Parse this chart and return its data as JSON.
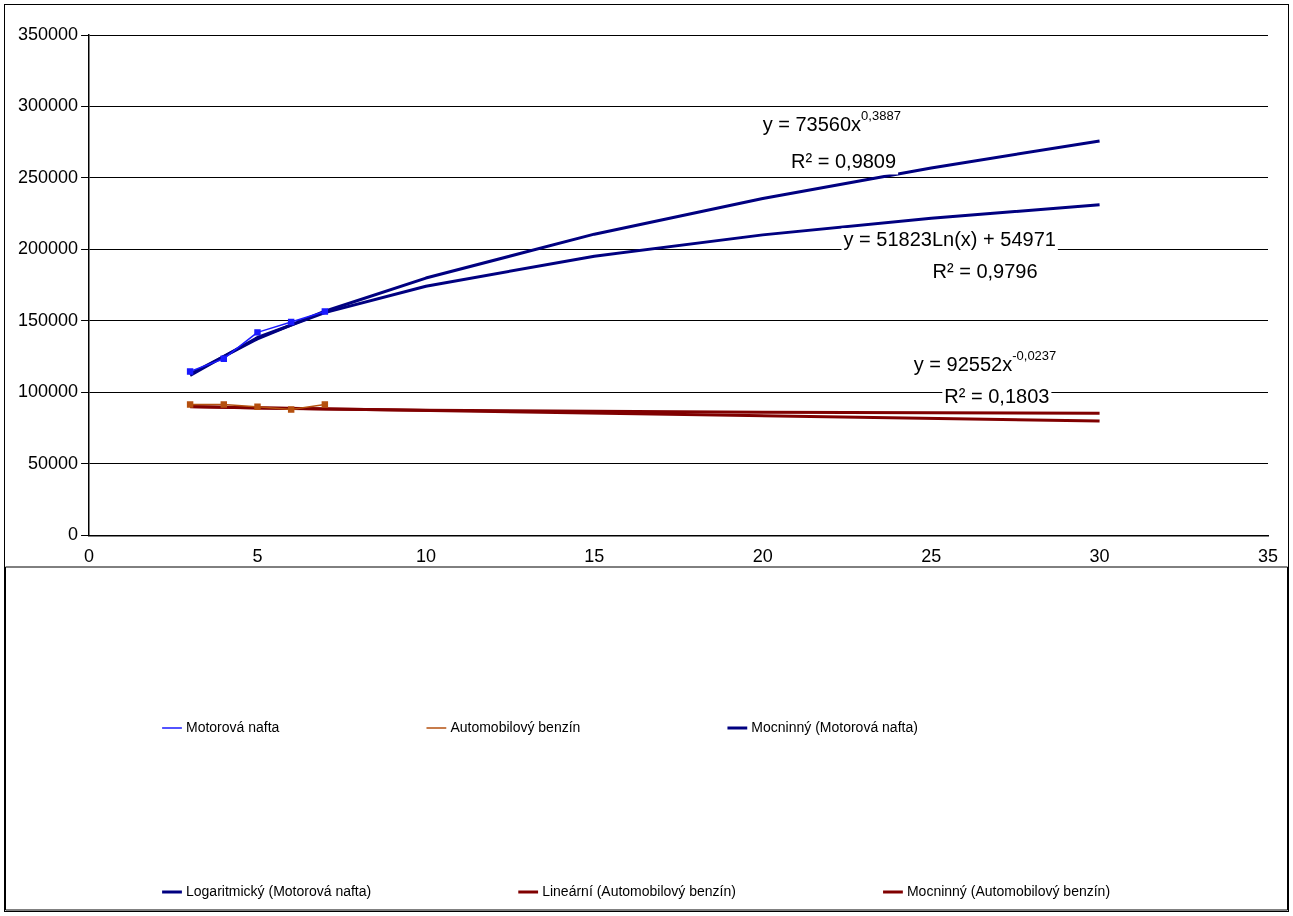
{
  "chart_data": {
    "type": "line",
    "xlim": [
      0,
      35
    ],
    "xticks": [
      0,
      5,
      10,
      15,
      20,
      25,
      30,
      35
    ],
    "ylim": [
      0,
      350000
    ],
    "yticks": [
      0,
      50000,
      100000,
      150000,
      200000,
      250000,
      300000,
      350000
    ],
    "grid": "y",
    "legend": "bottom",
    "series": [
      {
        "name": "Motorová nafta",
        "color": "#1a1aff",
        "marker": "square",
        "x": [
          3,
          4,
          5,
          6,
          7
        ],
        "values": [
          114700,
          123600,
          142000,
          149300,
          156600
        ]
      },
      {
        "name": "Automobilový benzín",
        "color": "#b5500f",
        "marker": "square",
        "x": [
          3,
          4,
          5,
          6,
          7
        ],
        "values": [
          91500,
          91500,
          90000,
          88000,
          91500
        ]
      },
      {
        "name": "Mocninný (Motorová nafta)",
        "color": "#000080",
        "marker": "none",
        "x": [
          3,
          5,
          7,
          10,
          15,
          20,
          25,
          30
        ],
        "values": [
          112800,
          137500,
          156800,
          180000,
          210700,
          235700,
          257000,
          275900
        ]
      },
      {
        "name": "Logaritmický (Motorová nafta)",
        "color": "#000080",
        "marker": "none",
        "x": [
          3,
          5,
          7,
          10,
          15,
          20,
          25,
          30
        ],
        "values": [
          111900,
          138400,
          155800,
          174300,
          195300,
          210200,
          221800,
          231200
        ]
      },
      {
        "name": "Lineární (Automobilový benzín)",
        "color": "#800000",
        "marker": "none",
        "x": [
          3,
          30
        ],
        "values": [
          90000,
          80000
        ]
      },
      {
        "name": "Mocninný (Automobilový benzín)",
        "color": "#800000",
        "marker": "none",
        "x": [
          3,
          5,
          7,
          10,
          15,
          20,
          25,
          30
        ],
        "values": [
          90200,
          89100,
          88400,
          87600,
          86800,
          86200,
          85700,
          85400
        ]
      }
    ],
    "annotations": [
      "y = 73560x$^{0,3887}$",
      "R² = 0,9809",
      "y = 51823Ln(x) + 54971",
      "R² = 0,9796",
      "y = 92552x$^{-0,0237}$",
      "R² = 0,1803"
    ]
  }
}
